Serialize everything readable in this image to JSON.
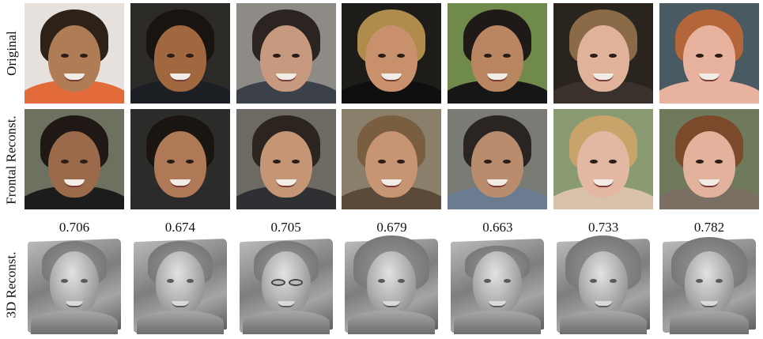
{
  "row_labels": {
    "original": "Original",
    "frontal": "Frontal Reconst.",
    "reconstruction_3d": "3D Reconst."
  },
  "scores": [
    "0.706",
    "0.674",
    "0.705",
    "0.679",
    "0.663",
    "0.733",
    "0.782"
  ],
  "colors": {
    "original_bg": [
      "#e6e1dc",
      "#2c2a26",
      "#8e8b86",
      "#1d1c18",
      "#6f8a4a",
      "#2a241f",
      "#4a5a63"
    ],
    "original_skin": [
      "#b07c55",
      "#a1673f",
      "#c79a80",
      "#c8916c",
      "#b98661",
      "#e0b29a",
      "#e7b39e"
    ],
    "original_hair": [
      "#2e2118",
      "#1a1410",
      "#2b2420",
      "#b08c4c",
      "#1f1a17",
      "#8a6a47",
      "#b4653a"
    ],
    "original_body": [
      "#e36a3a",
      "#1c1f23",
      "#3b4049",
      "#0f0f0f",
      "#161616",
      "#3a302c",
      "#e7b39e"
    ],
    "frontal_bg": [
      "#6d7160",
      "#2c2d2b",
      "#6c6a63",
      "#8a7f6b",
      "#7a7b74",
      "#8a9a72",
      "#6f7a5d"
    ],
    "frontal_skin": [
      "#9a6a4b",
      "#b07a58",
      "#c49676",
      "#c79474",
      "#b88c6c",
      "#e3b8a2",
      "#e2b29c"
    ],
    "frontal_hair": [
      "#1f1814",
      "#1b1512",
      "#2c241f",
      "#7a5e40",
      "#2a2522",
      "#c9a46a",
      "#7a4a2a"
    ],
    "frontal_body": [
      "#1c1c1c",
      "#2a2a2a",
      "#2f3034",
      "#5b4a3a",
      "#6c7c90",
      "#d8c2a9",
      "#7a6f62"
    ]
  }
}
